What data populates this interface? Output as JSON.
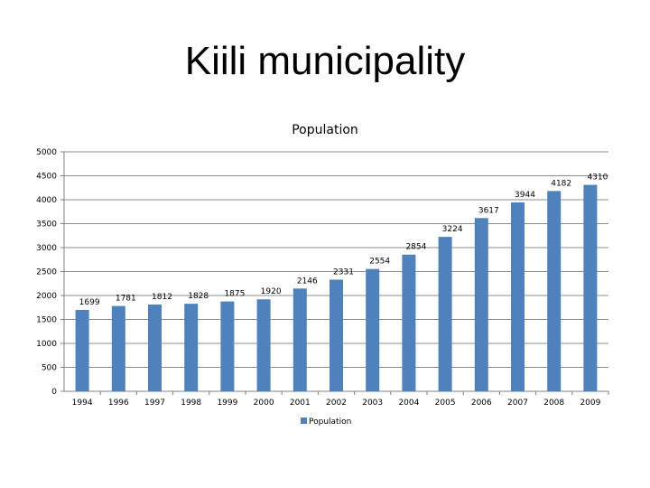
{
  "slide": {
    "title": "Kiili municipality"
  },
  "chart_data": {
    "type": "bar",
    "title": "Population",
    "xlabel": "",
    "ylabel": "",
    "categories": [
      "1994",
      "1996",
      "1997",
      "1998",
      "1999",
      "2000",
      "2001",
      "2002",
      "2003",
      "2004",
      "2005",
      "2006",
      "2007",
      "2008",
      "2009"
    ],
    "series": [
      {
        "name": "Population",
        "values": [
          1699,
          1781,
          1812,
          1828,
          1875,
          1920,
          2146,
          2331,
          2554,
          2854,
          3224,
          3617,
          3944,
          4182,
          4310
        ]
      }
    ],
    "data_labels": [
      "1699",
      "1781",
      "1812",
      "1828",
      "1875",
      "1920",
      "2146",
      "2331",
      "2554",
      "2854",
      "3224",
      "3617",
      "3944",
      "4182",
      "4310"
    ],
    "ylim": [
      0,
      5000
    ],
    "yticks": [
      0,
      500,
      1000,
      1500,
      2000,
      2500,
      3000,
      3500,
      4000,
      4500,
      5000
    ],
    "grid": true,
    "legend": "bottom",
    "colors": {
      "bar": "#4f81bd",
      "gridline": "#8c8c8c",
      "axis": "#808080"
    }
  }
}
